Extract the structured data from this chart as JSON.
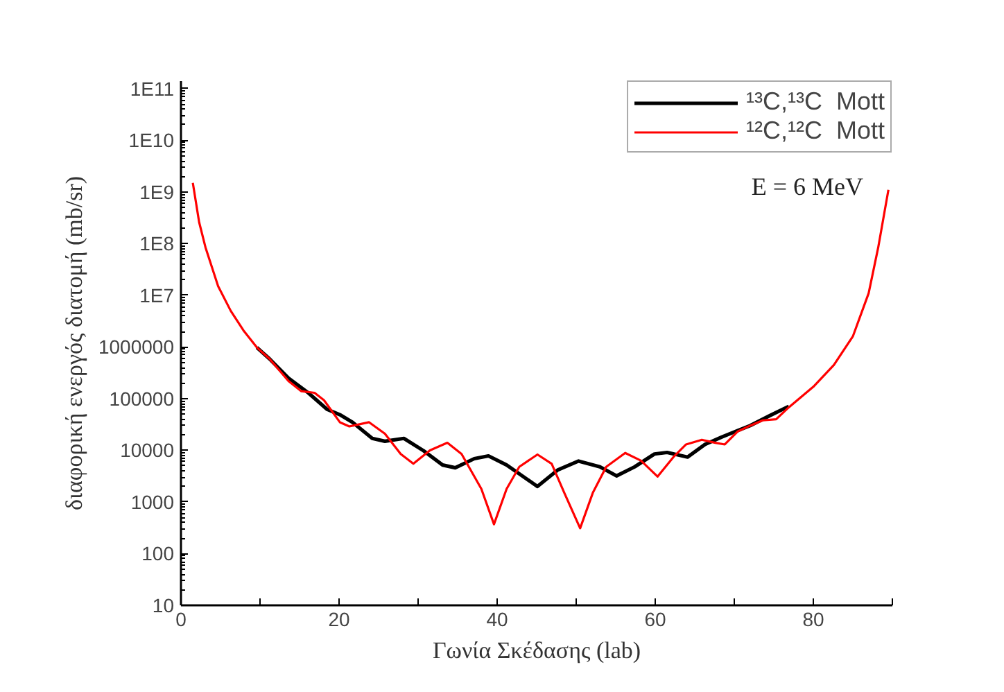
{
  "chart_data": {
    "type": "line",
    "xlabel": "Γωνία Σκέδασης (lab)",
    "ylabel": "διαφορική ενεργός διατομή (mb/sr)",
    "annotations": [
      "E = 6 MeV"
    ],
    "log": "y",
    "grid": false,
    "legend": "top right",
    "marker": "none",
    "line_style": "solid",
    "xlim": [
      0,
      90
    ],
    "xticks": [
      0,
      {
        "value": 10,
        "label": null
      },
      20,
      {
        "value": 30,
        "label": null
      },
      40,
      {
        "value": 50,
        "label": null
      },
      60,
      {
        "value": 70,
        "label": null
      },
      80,
      {
        "value": 90,
        "label": null
      }
    ],
    "ylim": [
      10,
      140000000000
    ],
    "yticks": [
      10,
      100,
      1000,
      10000,
      100000,
      1000000,
      {
        "value": 10000000,
        "label": "1E7"
      },
      {
        "value": 100000000,
        "label": "1E8"
      },
      {
        "value": 1000000000,
        "label": "1E9"
      },
      {
        "value": 10000000000,
        "label": "1E10"
      },
      {
        "value": 100000000000,
        "label": "1E11"
      }
    ],
    "series": [
      {
        "name": "¹³C,¹³C  Mott",
        "color": "#000000",
        "x": [
          9.6,
          11.2,
          13.6,
          16.1,
          18.5,
          20.1,
          21.7,
          24.2,
          25.8,
          28.2,
          30.7,
          33.1,
          34.7,
          37.1,
          38.9,
          41.2,
          45.1,
          47.7,
          50.3,
          53,
          55.1,
          57.4,
          59.9,
          61.5,
          64.1,
          66.3,
          68.4,
          70.4,
          72,
          74.5,
          76.9
        ],
        "values": [
          980000,
          590000,
          250000,
          130000,
          62000,
          49000,
          35000,
          17000,
          15000,
          17000,
          9800,
          5200,
          4600,
          6900,
          7800,
          5200,
          2000,
          4200,
          6200,
          4800,
          3200,
          4800,
          8500,
          9100,
          7400,
          13000,
          18000,
          24000,
          30000,
          47000,
          71000
        ]
      },
      {
        "name": "¹²C,¹²C  Mott",
        "color": "#ff0000",
        "x": [
          1.5,
          2.3,
          3.1,
          4.7,
          6.3,
          7.9,
          9.6,
          11.2,
          13.6,
          15.2,
          16.9,
          18.1,
          20.1,
          21.3,
          23.8,
          25.8,
          27.8,
          29.4,
          31.5,
          33.7,
          35.5,
          38,
          39.6,
          41.2,
          42.8,
          45.1,
          46.9,
          48.5,
          50.5,
          52.1,
          53.8,
          56.2,
          58.2,
          60.3,
          62.3,
          63.9,
          65.9,
          67.6,
          68.8,
          70.4,
          72,
          73.6,
          75.3,
          76.9,
          80,
          82.6,
          85,
          87,
          88.2,
          89.5
        ],
        "values": [
          1500000000,
          260000000,
          85000000,
          15000000,
          5000000,
          2100000,
          980000,
          590000,
          220000,
          140000,
          130000,
          93000,
          35000,
          29000,
          35000,
          21000,
          8500,
          5500,
          10000,
          14000,
          8500,
          1800,
          370,
          1800,
          4800,
          8300,
          5500,
          1500,
          310,
          1500,
          4800,
          8900,
          6300,
          3100,
          7400,
          13000,
          16000,
          14000,
          13000,
          23000,
          30000,
          38000,
          40000,
          68000,
          170000,
          450000,
          1600000,
          11000000,
          83000000,
          1100000000
        ]
      }
    ]
  }
}
